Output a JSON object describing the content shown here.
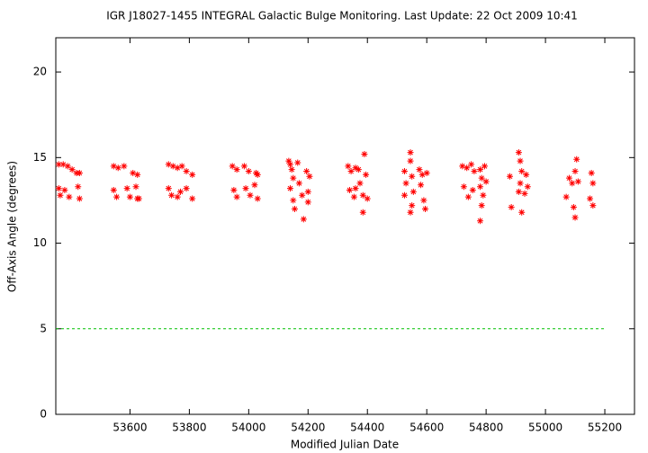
{
  "chart_data": {
    "type": "scatter",
    "title": "IGR J18027-1455   INTEGRAL Galactic Bulge Monitoring.  Last Update: 22 Oct 2009 10:41",
    "xlabel": "Modified Julian Date",
    "ylabel": "Off-Axis Angle (degrees)",
    "xlim": [
      53350,
      55300
    ],
    "ylim": [
      0,
      22
    ],
    "xticks": [
      53600,
      53800,
      54000,
      54200,
      54400,
      54600,
      54800,
      55000,
      55200
    ],
    "yticks": [
      0,
      5,
      10,
      15,
      20
    ],
    "series": [
      {
        "color": "#ff0000",
        "marker": "star",
        "x": [
          53360,
          53375,
          53390,
          53405,
          53360,
          53380,
          53365,
          53395,
          53420,
          53430,
          53425,
          53430,
          53545,
          53560,
          53545,
          53555,
          53590,
          53610,
          53625,
          53620,
          53630,
          53625,
          53580,
          53600,
          53730,
          53745,
          53760,
          53730,
          53740,
          53760,
          53775,
          53790,
          53790,
          53810,
          53810,
          53770,
          53945,
          53960,
          53950,
          53960,
          53985,
          54000,
          53990,
          54005,
          54025,
          54030,
          54020,
          54030,
          54135,
          54140,
          54145,
          54150,
          54140,
          54150,
          54155,
          54165,
          54170,
          54180,
          54185,
          54195,
          54205,
          54200,
          54200,
          54335,
          54345,
          54340,
          54355,
          54360,
          54370,
          54375,
          54385,
          54390,
          54395,
          54400,
          54385,
          54360,
          54525,
          54530,
          54525,
          54545,
          54545,
          54550,
          54555,
          54550,
          54545,
          54575,
          54585,
          54580,
          54590,
          54595,
          54600,
          54720,
          54735,
          54725,
          54740,
          54750,
          54760,
          54755,
          54780,
          54785,
          54780,
          54790,
          54785,
          54780,
          54795,
          54800,
          54880,
          54885,
          54910,
          54915,
          54920,
          54915,
          54910,
          54920,
          54935,
          54940,
          54930,
          55080,
          55090,
          55070,
          55105,
          55100,
          55110,
          55095,
          55100,
          55155,
          55160,
          55150,
          55160
        ],
        "y": [
          14.6,
          14.6,
          14.5,
          14.3,
          13.2,
          13.1,
          12.8,
          12.7,
          14.1,
          14.1,
          13.3,
          12.6,
          14.5,
          14.4,
          13.1,
          12.7,
          13.2,
          14.1,
          14.0,
          13.3,
          12.6,
          12.6,
          14.5,
          12.7,
          14.6,
          14.5,
          14.4,
          13.2,
          12.8,
          12.7,
          14.5,
          14.2,
          13.2,
          14.0,
          12.6,
          13.0,
          14.5,
          14.3,
          13.1,
          12.7,
          14.5,
          14.2,
          13.2,
          12.8,
          14.1,
          12.6,
          13.4,
          14.0,
          14.8,
          14.6,
          14.3,
          13.8,
          13.2,
          12.5,
          12.0,
          14.7,
          13.5,
          12.8,
          11.4,
          14.2,
          13.9,
          13.0,
          12.4,
          14.5,
          14.2,
          13.1,
          12.7,
          14.4,
          14.3,
          13.5,
          12.8,
          15.2,
          14.0,
          12.6,
          11.8,
          13.2,
          14.2,
          13.5,
          12.8,
          15.3,
          14.8,
          13.9,
          13.0,
          12.2,
          11.8,
          14.3,
          14.0,
          13.4,
          12.5,
          12.0,
          14.1,
          14.5,
          14.4,
          13.3,
          12.7,
          14.6,
          14.2,
          13.1,
          14.3,
          13.8,
          13.3,
          12.8,
          12.2,
          11.3,
          14.5,
          13.6,
          13.9,
          12.1,
          15.3,
          14.8,
          14.2,
          13.5,
          13.0,
          11.8,
          14.0,
          13.3,
          12.9,
          13.8,
          13.5,
          12.7,
          14.9,
          14.2,
          13.6,
          12.1,
          11.5,
          14.1,
          13.5,
          12.6,
          12.2
        ]
      },
      {
        "color": "#00c000",
        "marker": "dashed-line",
        "x": [
          53350,
          55200
        ],
        "y": [
          5,
          5
        ]
      }
    ]
  }
}
